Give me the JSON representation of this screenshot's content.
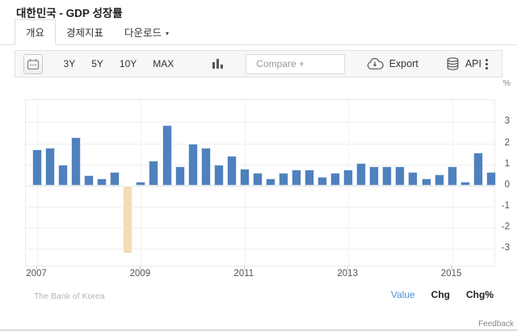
{
  "header": {
    "title": "대한민국 - GDP 성장률"
  },
  "tabs": [
    {
      "label": "개요"
    },
    {
      "label": "경제지표"
    },
    {
      "label": "다운로드"
    }
  ],
  "toolbar": {
    "ranges": [
      "3Y",
      "5Y",
      "10Y",
      "MAX"
    ],
    "compare_placeholder": "Compare +",
    "export_label": "Export",
    "api_label": "API"
  },
  "footer": {
    "source": "The Bank of Korea",
    "links": [
      "Value",
      "Chg",
      "Chg%"
    ],
    "active_link": "Value",
    "feedback": "Feedback"
  },
  "colors": {
    "bar": "#4e81bd",
    "highlight_bar": "#f2ddb4",
    "accent_link": "#4a90d2"
  },
  "chart_data": {
    "type": "bar",
    "title": "대한민국 - GDP 성장률 (quarterly growth rate)",
    "unit": "%",
    "source": "The Bank of Korea",
    "categories": [
      "2007 Q1",
      "2007 Q2",
      "2007 Q3",
      "2007 Q4",
      "2008 Q1",
      "2008 Q2",
      "2008 Q3",
      "2008 Q4",
      "2009 Q1",
      "2009 Q2",
      "2009 Q3",
      "2009 Q4",
      "2010 Q1",
      "2010 Q2",
      "2010 Q3",
      "2010 Q4",
      "2011 Q1",
      "2011 Q2",
      "2011 Q3",
      "2011 Q4",
      "2012 Q1",
      "2012 Q2",
      "2012 Q3",
      "2012 Q4",
      "2013 Q1",
      "2013 Q2",
      "2013 Q3",
      "2013 Q4",
      "2014 Q1",
      "2014 Q2",
      "2014 Q3",
      "2014 Q4",
      "2015 Q1",
      "2015 Q2",
      "2015 Q3",
      "2015 Q4"
    ],
    "values": [
      1.7,
      1.8,
      1.0,
      2.3,
      0.5,
      0.35,
      0.65,
      -3.2,
      0.2,
      1.2,
      2.85,
      0.9,
      2.0,
      1.8,
      1.0,
      1.4,
      0.8,
      0.6,
      0.35,
      0.6,
      0.75,
      0.75,
      0.4,
      0.6,
      0.75,
      1.05,
      0.9,
      0.9,
      0.9,
      0.65,
      0.35,
      0.55,
      0.9,
      0.2,
      1.55,
      0.65
    ],
    "highlight_index": 7,
    "x_ticks": [
      {
        "label": "2007",
        "index": 0
      },
      {
        "label": "2009",
        "index": 8
      },
      {
        "label": "2011",
        "index": 16
      },
      {
        "label": "2013",
        "index": 24
      },
      {
        "label": "2015",
        "index": 32
      }
    ],
    "yticks": [
      3,
      2,
      1,
      0,
      -1,
      -2,
      -3
    ],
    "ylim": [
      -3.79,
      4.05
    ],
    "grid": true,
    "legend": false
  }
}
